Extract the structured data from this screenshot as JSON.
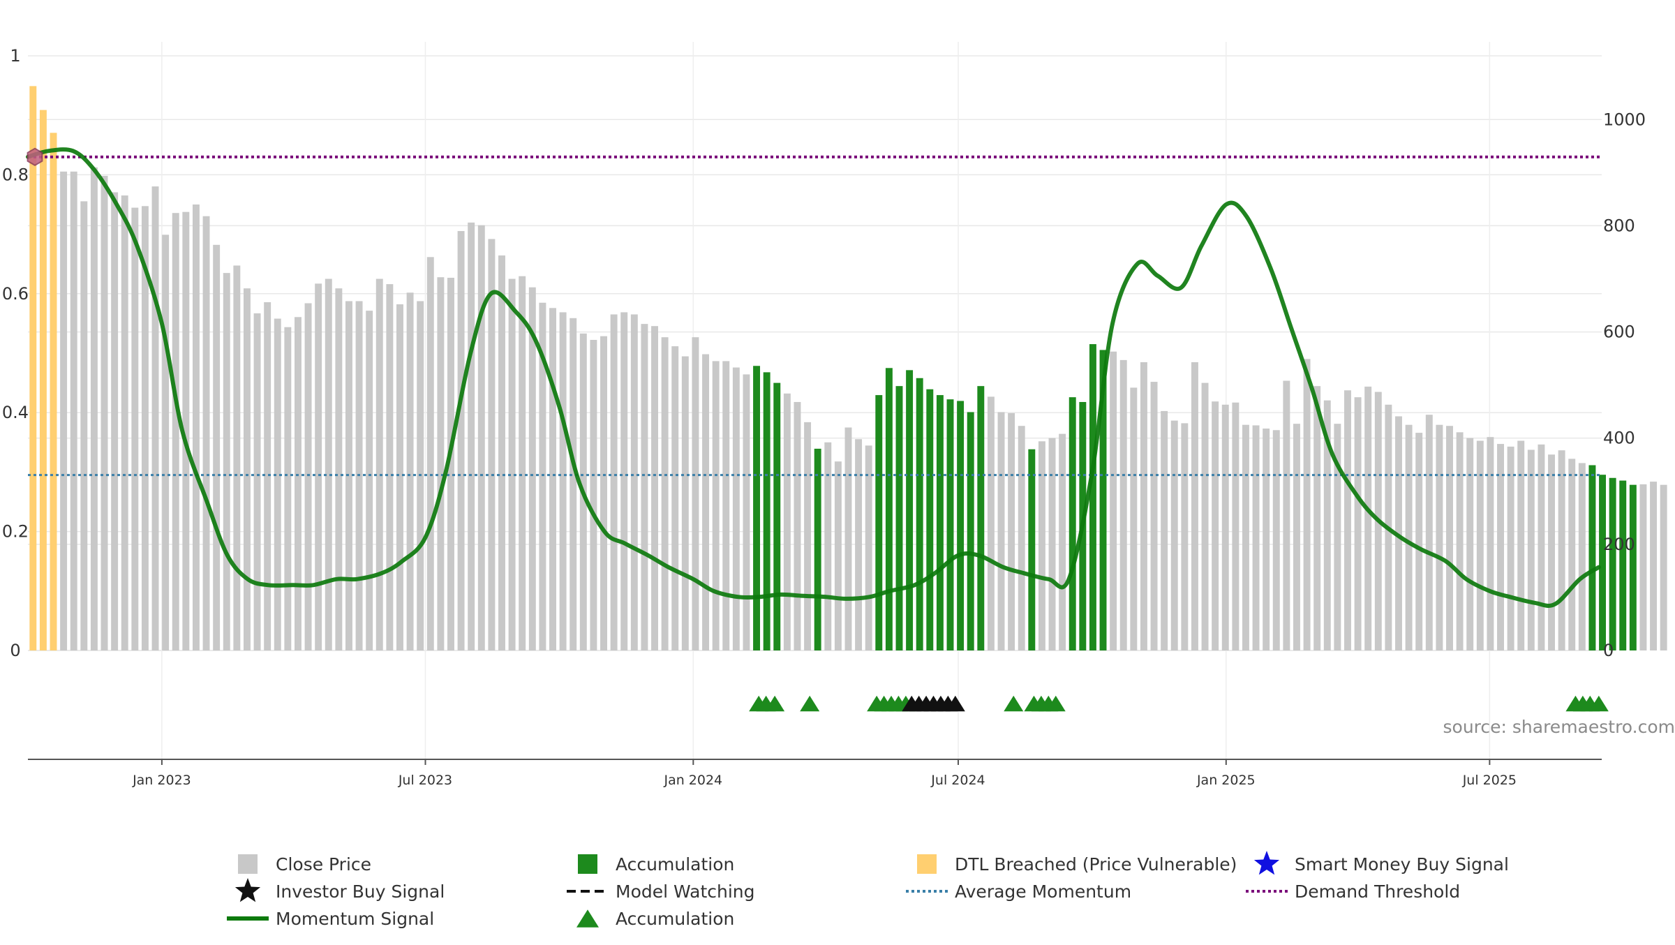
{
  "chart_data": {
    "type": "bar",
    "bar_start_date": "2022-10-01",
    "bar_interval_days": 7,
    "close_prices": [
      1063,
      1018,
      975,
      902,
      902,
      846,
      910,
      894,
      863,
      857,
      834,
      837,
      874,
      783,
      824,
      826,
      840,
      818,
      764,
      711,
      725,
      682,
      635,
      656,
      625,
      609,
      628,
      654,
      691,
      700,
      682,
      658,
      658,
      640,
      700,
      690,
      652,
      674,
      658,
      741,
      703,
      702,
      790,
      806,
      801,
      775,
      744,
      700,
      705,
      684,
      655,
      645,
      637,
      626,
      597,
      585,
      592,
      633,
      637,
      633,
      615,
      611,
      590,
      573,
      554,
      590,
      558,
      545,
      545,
      533,
      520,
      536,
      524,
      504,
      484,
      468,
      430,
      380,
      392,
      356,
      420,
      398,
      386,
      481,
      532,
      498,
      528,
      513,
      492,
      481,
      473,
      470,
      449,
      498,
      478,
      449,
      447,
      423,
      379,
      394,
      400,
      408,
      477,
      468,
      577,
      566,
      563,
      547,
      495,
      543,
      506,
      451,
      433,
      428,
      543,
      504,
      469,
      463,
      467,
      425,
      424,
      418,
      415,
      508,
      427,
      549,
      498,
      471,
      427,
      490,
      477,
      497,
      487,
      463,
      441,
      425,
      410,
      444,
      425,
      423,
      411,
      400,
      395,
      402,
      389,
      384,
      395,
      378,
      388,
      369,
      377,
      361,
      353,
      349,
      331,
      325,
      320,
      312,
      313,
      318,
      312
    ],
    "accumulation_bar_indices": [
      71,
      72,
      73,
      77,
      83,
      84,
      85,
      86,
      87,
      88,
      89,
      90,
      91,
      92,
      93,
      98,
      102,
      103,
      104,
      105,
      153,
      154,
      155,
      156,
      157
    ],
    "dtl_breached_bar_indices": [
      0,
      1,
      2
    ],
    "momentum_signal_x": [
      "2022-10-01",
      "2022-10-15",
      "2022-11-01",
      "2022-11-15",
      "2022-12-01",
      "2022-12-15",
      "2023-01-01",
      "2023-01-15",
      "2023-02-01",
      "2023-02-15",
      "2023-03-01",
      "2023-03-15",
      "2023-04-01",
      "2023-04-15",
      "2023-05-01",
      "2023-05-15",
      "2023-06-01",
      "2023-06-15",
      "2023-07-01",
      "2023-07-15",
      "2023-08-01",
      "2023-08-15",
      "2023-09-01",
      "2023-09-15",
      "2023-10-01",
      "2023-10-15",
      "2023-11-01",
      "2023-11-15",
      "2023-12-01",
      "2023-12-15",
      "2024-01-01",
      "2024-01-15",
      "2024-02-01",
      "2024-02-15",
      "2024-03-01",
      "2024-03-15",
      "2024-04-01",
      "2024-04-15",
      "2024-05-01",
      "2024-05-15",
      "2024-06-01",
      "2024-06-15",
      "2024-07-01",
      "2024-07-15",
      "2024-08-01",
      "2024-08-15",
      "2024-09-01",
      "2024-09-15",
      "2024-10-01",
      "2024-10-15",
      "2024-11-01",
      "2024-11-15",
      "2024-12-01",
      "2024-12-15",
      "2025-01-01",
      "2025-01-15",
      "2025-02-01",
      "2025-02-15",
      "2025-03-01",
      "2025-03-15",
      "2025-04-01",
      "2025-04-15",
      "2025-05-01",
      "2025-05-15",
      "2025-06-01",
      "2025-06-15",
      "2025-07-01",
      "2025-07-15",
      "2025-08-01",
      "2025-08-15",
      "2025-09-01",
      "2025-09-14"
    ],
    "momentum_signal_y": [
      0.83,
      0.84,
      0.84,
      0.81,
      0.75,
      0.68,
      0.55,
      0.37,
      0.25,
      0.16,
      0.12,
      0.11,
      0.11,
      0.11,
      0.12,
      0.12,
      0.13,
      0.15,
      0.19,
      0.3,
      0.5,
      0.6,
      0.57,
      0.52,
      0.41,
      0.28,
      0.2,
      0.18,
      0.16,
      0.14,
      0.12,
      0.1,
      0.09,
      0.09,
      0.094,
      0.092,
      0.09,
      0.087,
      0.09,
      0.1,
      0.11,
      0.13,
      0.16,
      0.16,
      0.14,
      0.13,
      0.12,
      0.12,
      0.3,
      0.55,
      0.65,
      0.63,
      0.61,
      0.68,
      0.75,
      0.73,
      0.64,
      0.54,
      0.44,
      0.33,
      0.26,
      0.22,
      0.19,
      0.17,
      0.15,
      0.12,
      0.1,
      0.09,
      0.08,
      0.078,
      0.12,
      0.14
    ],
    "accumulation_marker_x": [
      "2024-02-15",
      "2024-02-20",
      "2024-02-26",
      "2024-03-21",
      "2024-05-06",
      "2024-05-11",
      "2024-05-16",
      "2024-05-21",
      "2024-05-26",
      "2024-08-08",
      "2024-08-22",
      "2024-08-27",
      "2024-09-01",
      "2024-09-06",
      "2025-08-29",
      "2025-09-03",
      "2025-09-08",
      "2025-09-14"
    ],
    "investor_buy_marker_x": [
      "2024-05-30",
      "2024-06-04",
      "2024-06-09",
      "2024-06-14",
      "2024-06-19",
      "2024-06-24",
      "2024-06-29"
    ],
    "average_momentum": 0.295,
    "demand_threshold": 0.83,
    "demand_marker_y": 0.83,
    "left_axis": {
      "ticks": [
        0,
        0.2,
        0.4,
        0.6,
        0.8,
        1
      ],
      "labels": [
        "0",
        "0.2",
        "0.4",
        "0.6",
        "0.8",
        "1"
      ],
      "ylim": [
        0,
        1
      ]
    },
    "right_axis": {
      "ticks": [
        0,
        200,
        400,
        600,
        800,
        1000
      ],
      "labels": [
        "0",
        "200",
        "400",
        "600",
        "800",
        "1000"
      ],
      "ylim": [
        0,
        1120
      ]
    },
    "x_axis": {
      "range": [
        "2022-10-01",
        "2025-09-16"
      ],
      "ticks": [
        "2023-01-01",
        "2023-07-01",
        "2024-01-01",
        "2024-07-01",
        "2025-01-01",
        "2025-07-01"
      ],
      "labels": [
        "Jan 2023",
        "Jul 2023",
        "Jan 2024",
        "Jul 2024",
        "Jan 2025",
        "Jul 2025"
      ]
    },
    "legend_placement": "bottom",
    "grid": true
  },
  "legend": [
    {
      "label": "Close Price",
      "icon": "gray-square-icon"
    },
    {
      "label": "Accumulation",
      "icon": "green-square-icon"
    },
    {
      "label": "DTL Breached (Price Vulnerable)",
      "icon": "orange-square-icon"
    },
    {
      "label": "Smart Money Buy Signal",
      "icon": "blue-star-icon"
    },
    {
      "label": "Investor Buy Signal",
      "icon": "black-star-icon"
    },
    {
      "label": "Model Watching",
      "icon": "black-dashed-line-icon"
    },
    {
      "label": "Average Momentum",
      "icon": "blue-dotted-line-icon"
    },
    {
      "label": "Demand Threshold",
      "icon": "purple-dotted-line-icon"
    },
    {
      "label": "Momentum Signal",
      "icon": "green-line-icon"
    },
    {
      "label": "Accumulation",
      "icon": "green-triangle-icon"
    }
  ],
  "source": "source: sharemaestro.com",
  "colors": {
    "close_price": "#c8c8c8",
    "accumulation": "#1d8a1d",
    "dtl_breached": "#ffcf70",
    "momentum": "#0d7a0d",
    "investor_buy": "#111111",
    "smart_money": "#1010e0",
    "average_momentum": "#3a7fa8",
    "demand_threshold": "#7a0a7a",
    "demand_marker": "#c06080",
    "grid": "#e8e8e8"
  }
}
